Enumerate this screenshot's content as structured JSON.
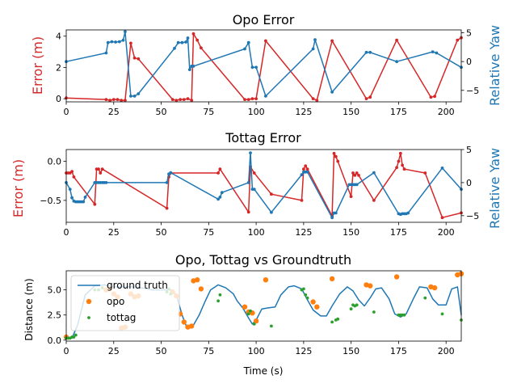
{
  "colors": {
    "red": "#d62728",
    "blue": "#1f77b4",
    "orange": "#ff7f0e",
    "green": "#2ca02c",
    "axis": "#000000"
  },
  "chart_data": [
    {
      "type": "line",
      "title": "Opo Error",
      "xlabel": "",
      "ylabel": "Error (m)",
      "ylabel_right": "Relative Yaw",
      "xlim": [
        0,
        208
      ],
      "ylim": [
        -0.2,
        4.4
      ],
      "ylim_right": [
        -7,
        5.5
      ],
      "xticks": [
        "0",
        "25",
        "50",
        "75",
        "100",
        "125",
        "150",
        "175",
        "200"
      ],
      "yticks": [
        "0",
        "2",
        "4"
      ],
      "yticks_right": [
        "−5",
        "0",
        "5"
      ],
      "series": [
        {
          "axis": "left",
          "color": "red",
          "marker": "dot",
          "x": [
            0,
            21,
            23,
            25,
            27,
            29,
            31,
            34,
            36,
            38,
            56,
            58,
            60,
            62,
            64,
            66,
            67,
            69,
            71,
            94,
            96,
            98,
            100,
            105,
            130,
            132,
            140,
            158,
            160,
            174,
            192,
            194,
            206,
            208
          ],
          "y": [
            0.05,
            -0.05,
            -0.1,
            -0.05,
            -0.05,
            -0.1,
            -0.1,
            3.55,
            2.6,
            2.55,
            -0.05,
            -0.1,
            -0.05,
            -0.05,
            0.0,
            -0.1,
            4.15,
            3.75,
            3.25,
            -0.05,
            -0.05,
            0.0,
            0.0,
            3.7,
            0.0,
            -0.1,
            3.7,
            0.0,
            0.1,
            3.75,
            0.1,
            0.15,
            3.75,
            3.9
          ]
        },
        {
          "axis": "right",
          "color": "blue",
          "marker": "dot",
          "x": [
            0,
            21,
            22,
            24,
            26,
            28,
            30,
            31,
            34,
            36,
            38,
            57,
            59,
            61,
            63,
            64,
            65,
            66,
            67,
            94,
            96,
            98,
            100,
            105,
            130,
            131,
            140,
            158,
            160,
            174,
            193,
            195,
            208
          ],
          "y": [
            0.0,
            1.5,
            3.3,
            3.45,
            3.4,
            3.45,
            3.7,
            5.2,
            -6.0,
            -6.0,
            -5.6,
            2.3,
            3.3,
            3.3,
            3.4,
            4.1,
            -1.4,
            -0.8,
            -0.8,
            2.2,
            3.3,
            -1.0,
            -1.0,
            -6.0,
            2.2,
            3.8,
            -5.3,
            1.6,
            1.6,
            0.0,
            1.7,
            1.5,
            -1.0
          ]
        }
      ]
    },
    {
      "type": "line",
      "title": "Tottag Error",
      "xlabel": "",
      "ylabel": "Error (m)",
      "ylabel_right": "Relative Yaw",
      "xlim": [
        0,
        208
      ],
      "ylim": [
        -0.78,
        0.15
      ],
      "ylim_right": [
        -6,
        5
      ],
      "xticks": [
        "0",
        "25",
        "50",
        "75",
        "100",
        "125",
        "150",
        "175",
        "200"
      ],
      "yticks": [
        "−0.5",
        "0.0"
      ],
      "yticks_right": [
        "−5",
        "0",
        "5"
      ],
      "series": [
        {
          "axis": "left",
          "color": "red",
          "marker": "dot",
          "x": [
            0,
            1,
            2,
            3,
            4,
            15,
            16,
            17,
            18,
            19,
            53,
            54,
            55,
            80,
            81,
            96,
            97,
            99,
            108,
            124,
            125,
            126,
            127,
            140,
            141,
            142,
            143,
            150,
            151,
            152,
            153,
            154,
            162,
            174,
            175,
            176,
            177,
            178,
            189,
            198,
            208
          ],
          "y": [
            -0.15,
            -0.15,
            -0.15,
            -0.13,
            -0.2,
            -0.55,
            -0.1,
            -0.1,
            -0.15,
            -0.1,
            -0.6,
            -0.2,
            -0.15,
            -0.15,
            -0.1,
            -0.65,
            -0.07,
            -0.15,
            -0.42,
            -0.5,
            -0.1,
            -0.06,
            -0.1,
            -0.7,
            0.1,
            0.06,
            0.0,
            -0.45,
            -0.15,
            -0.18,
            -0.15,
            -0.18,
            -0.5,
            -0.08,
            0.0,
            0.1,
            -0.05,
            -0.1,
            -0.15,
            -0.72,
            -0.66
          ]
        },
        {
          "axis": "right",
          "color": "blue",
          "marker": "dot",
          "x": [
            0,
            2,
            3,
            4,
            5,
            6,
            7,
            8,
            9,
            10,
            15,
            16,
            17,
            18,
            19,
            20,
            21,
            53,
            54,
            55,
            80,
            81,
            82,
            96,
            97,
            98,
            99,
            108,
            124,
            125,
            126,
            127,
            140,
            141,
            142,
            149,
            150,
            151,
            152,
            153,
            162,
            175,
            176,
            177,
            178,
            179,
            180,
            198,
            208
          ],
          "y": [
            0.0,
            -1.0,
            -2.3,
            -2.8,
            -2.9,
            -2.9,
            -2.9,
            -2.9,
            -2.9,
            -2.2,
            0.0,
            0.0,
            0.0,
            0.0,
            0.0,
            0.0,
            0.0,
            0.0,
            1.3,
            1.5,
            -2.5,
            -2.2,
            -1.5,
            0.0,
            4.5,
            -1.0,
            -1.0,
            -4.5,
            1.2,
            1.6,
            1.6,
            1.6,
            -5.3,
            -4.6,
            -4.6,
            -0.3,
            -0.3,
            -0.3,
            -0.3,
            -0.3,
            1.5,
            -4.7,
            -4.8,
            -4.7,
            -4.7,
            -4.7,
            -4.6,
            2.2,
            -1.0
          ]
        }
      ]
    },
    {
      "type": "line",
      "title": "Opo, Tottag vs Groundtruth",
      "xlabel": "Time (s)",
      "ylabel": "Distance (m)",
      "xlim": [
        0,
        208
      ],
      "ylim": [
        -0.1,
        6.9
      ],
      "xticks": [
        "0",
        "25",
        "50",
        "75",
        "100",
        "125",
        "150",
        "175",
        "200"
      ],
      "yticks": [
        "0.0",
        "2.5",
        "5.0"
      ],
      "legend_position": "upper-left",
      "series": [
        {
          "name": "ground truth",
          "color": "blue",
          "style": "line",
          "x": [
            0,
            3,
            6,
            10,
            15,
            20,
            25,
            30,
            35,
            40,
            45,
            50,
            55,
            58,
            61,
            63,
            65,
            67,
            70,
            73,
            76,
            80,
            84,
            88,
            90,
            93,
            96,
            98,
            100,
            103,
            106,
            110,
            113,
            117,
            120,
            124,
            127,
            130,
            134,
            137,
            140,
            144,
            148,
            151,
            154,
            157,
            160,
            163,
            166,
            170,
            173,
            176,
            179,
            183,
            186,
            190,
            193,
            196,
            200,
            203,
            206,
            208
          ],
          "y": [
            0.2,
            0.2,
            1.5,
            4.5,
            5.4,
            5.5,
            5.3,
            5.3,
            5.3,
            5.2,
            5.0,
            5.0,
            5.0,
            4.5,
            2.5,
            1.5,
            1.2,
            1.5,
            2.5,
            3.8,
            5.0,
            5.5,
            5.2,
            4.6,
            3.9,
            3.2,
            2.2,
            1.6,
            2.0,
            3.1,
            3.2,
            3.3,
            4.5,
            5.3,
            5.4,
            5.1,
            4.0,
            3.0,
            2.4,
            2.4,
            3.4,
            4.6,
            5.3,
            4.9,
            4.0,
            3.4,
            4.2,
            5.1,
            5.2,
            4.1,
            2.6,
            2.3,
            2.6,
            4.2,
            5.3,
            5.2,
            4.1,
            3.5,
            3.5,
            5.1,
            5.3,
            2.5
          ]
        },
        {
          "name": "opo",
          "color": "orange",
          "style": "scatter",
          "x": [
            0,
            21,
            23,
            25,
            27,
            29,
            31,
            34,
            36,
            38,
            56,
            58,
            60,
            62,
            64,
            66,
            67,
            69,
            71,
            94,
            96,
            98,
            100,
            105,
            130,
            132,
            140,
            158,
            160,
            174,
            192,
            194,
            206,
            208
          ],
          "y": [
            0.3,
            5.0,
            5.1,
            4.6,
            4.3,
            1.2,
            1.3,
            4.6,
            4.3,
            4.4,
            4.8,
            4.4,
            2.6,
            1.8,
            1.3,
            1.4,
            5.9,
            6.0,
            5.1,
            3.3,
            2.8,
            2.7,
            1.9,
            6.0,
            3.8,
            3.3,
            6.1,
            5.5,
            5.4,
            6.3,
            5.3,
            5.2,
            6.5,
            6.6
          ]
        },
        {
          "name": "tottag",
          "color": "green",
          "style": "scatter",
          "x": [
            0,
            1,
            2,
            3,
            4,
            5,
            15,
            17,
            19,
            53,
            54,
            55,
            80,
            81,
            96,
            97,
            99,
            108,
            124,
            125,
            126,
            127,
            140,
            142,
            143,
            150,
            151,
            152,
            153,
            162,
            175,
            176,
            177,
            178,
            189,
            198,
            208
          ],
          "y": [
            0.2,
            0.2,
            0.2,
            0.3,
            0.3,
            0.5,
            5.0,
            5.0,
            5.2,
            4.8,
            5.1,
            4.6,
            3.9,
            4.5,
            2.6,
            2.9,
            1.6,
            1.4,
            5.0,
            5.1,
            4.5,
            4.2,
            1.8,
            2.0,
            2.1,
            3.1,
            3.5,
            3.4,
            3.5,
            2.8,
            2.5,
            2.5,
            2.5,
            2.5,
            4.2,
            2.6,
            2.0
          ]
        }
      ]
    }
  ]
}
